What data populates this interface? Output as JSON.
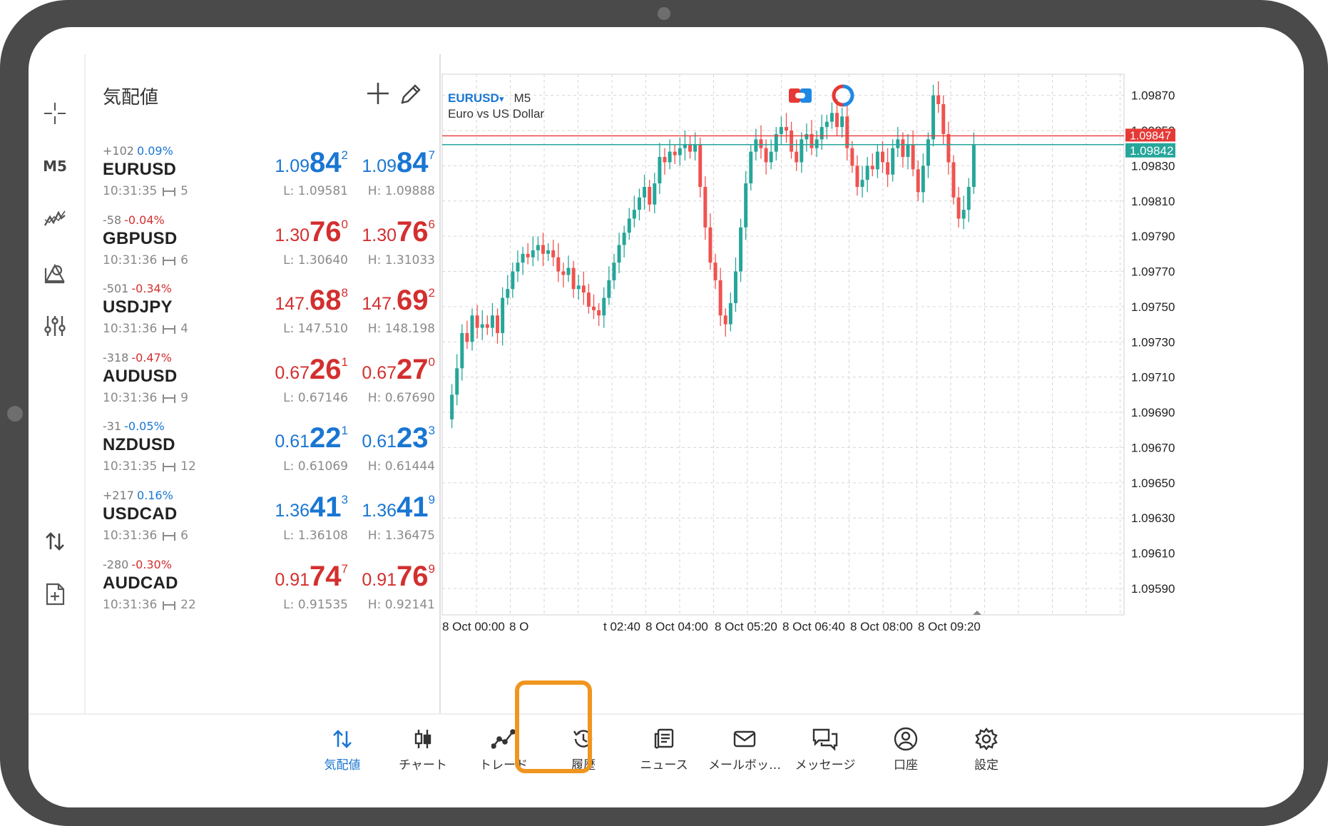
{
  "toolbar_left": {
    "timeframe": "M5",
    "icons": [
      "crosshair-icon",
      "timeframe",
      "indicators-icon",
      "objects-icon",
      "settings-sliders-icon",
      "trade-arrows-icon",
      "new-order-icon"
    ]
  },
  "watchlist": {
    "title": "気配値",
    "rows": [
      {
        "change": "+102",
        "pct": "0.09%",
        "dir": "up",
        "symbol": "EURUSD",
        "time": "10:31:35",
        "spread": "5",
        "bid_pre": "1.09",
        "bid_big": "84",
        "bid_sup": "2",
        "ask_pre": "1.09",
        "ask_big": "84",
        "ask_sup": "7",
        "low": "L: 1.09581",
        "high": "H: 1.09888"
      },
      {
        "change": "-58",
        "pct": "-0.04%",
        "dir": "dn",
        "symbol": "GBPUSD",
        "time": "10:31:36",
        "spread": "6",
        "bid_pre": "1.30",
        "bid_big": "76",
        "bid_sup": "0",
        "ask_pre": "1.30",
        "ask_big": "76",
        "ask_sup": "6",
        "low": "L: 1.30640",
        "high": "H: 1.31033"
      },
      {
        "change": "-501",
        "pct": "-0.34%",
        "dir": "dn",
        "symbol": "USDJPY",
        "time": "10:31:36",
        "spread": "4",
        "bid_pre": "147.",
        "bid_big": "68",
        "bid_sup": "8",
        "ask_pre": "147.",
        "ask_big": "69",
        "ask_sup": "2",
        "low": "L: 147.510",
        "high": "H: 148.198"
      },
      {
        "change": "-318",
        "pct": "-0.47%",
        "dir": "dn",
        "symbol": "AUDUSD",
        "time": "10:31:36",
        "spread": "9",
        "bid_pre": "0.67",
        "bid_big": "26",
        "bid_sup": "1",
        "ask_pre": "0.67",
        "ask_big": "27",
        "ask_sup": "0",
        "low": "L: 0.67146",
        "high": "H: 0.67690"
      },
      {
        "change": "-31",
        "pct": "-0.05%",
        "dir": "up",
        "symbol": "NZDUSD",
        "time": "10:31:35",
        "spread": "12",
        "bid_pre": "0.61",
        "bid_big": "22",
        "bid_sup": "1",
        "ask_pre": "0.61",
        "ask_big": "23",
        "ask_sup": "3",
        "low": "L: 0.61069",
        "high": "H: 0.61444"
      },
      {
        "change": "+217",
        "pct": "0.16%",
        "dir": "up",
        "symbol": "USDCAD",
        "time": "10:31:36",
        "spread": "6",
        "bid_pre": "1.36",
        "bid_big": "41",
        "bid_sup": "3",
        "ask_pre": "1.36",
        "ask_big": "41",
        "ask_sup": "9",
        "low": "L: 1.36108",
        "high": "H: 1.36475"
      },
      {
        "change": "-280",
        "pct": "-0.30%",
        "dir": "dn",
        "symbol": "AUDCAD",
        "time": "10:31:36",
        "spread": "22",
        "bid_pre": "0.91",
        "bid_big": "74",
        "bid_sup": "7",
        "ask_pre": "0.91",
        "ask_big": "76",
        "ask_sup": "9",
        "low": "L: 0.91535",
        "high": "H: 0.92141"
      }
    ]
  },
  "chart": {
    "symbol": "EURUSD",
    "dropdown_mark": "▾",
    "timeframe": "M5",
    "description": "Euro vs US Dollar",
    "ask_label": "1.09847",
    "bid_label": "1.09842",
    "ask_line_color": "#e53935",
    "bid_line_color": "#26a69a"
  },
  "chart_data": {
    "type": "candlestick",
    "y_ticks": [
      "1.09870",
      "1.09850",
      "1.09830",
      "1.09810",
      "1.09790",
      "1.09770",
      "1.09750",
      "1.09730",
      "1.09710",
      "1.09690",
      "1.09670",
      "1.09650",
      "1.09630",
      "1.09610",
      "1.09590"
    ],
    "x_labels": [
      "8 Oct 00:00",
      "8 O",
      "t 02:40",
      "8 Oct 04:00",
      "8 Oct 05:20",
      "8 Oct 06:40",
      "8 Oct 08:00",
      "8 Oct 09:20"
    ],
    "ylim": [
      1.09575,
      1.09882
    ],
    "ask": 1.09847,
    "bid": 1.09842,
    "up_color": "#26a69a",
    "down_color": "#ef5350",
    "grid": true
  },
  "nav": {
    "items": [
      {
        "label": "気配値",
        "icon": "quotes-icon",
        "active": true
      },
      {
        "label": "チャート",
        "icon": "chart-icon",
        "active": false
      },
      {
        "label": "トレード",
        "icon": "trade-icon",
        "active": false
      },
      {
        "label": "履歴",
        "icon": "history-icon",
        "active": false
      },
      {
        "label": "ニュース",
        "icon": "news-icon",
        "active": false
      },
      {
        "label": "メールボッ…",
        "icon": "mail-icon",
        "active": false
      },
      {
        "label": "メッセージ",
        "icon": "messages-icon",
        "active": false
      },
      {
        "label": "口座",
        "icon": "account-icon",
        "active": false
      },
      {
        "label": "設定",
        "icon": "gear-icon",
        "active": false
      }
    ]
  }
}
